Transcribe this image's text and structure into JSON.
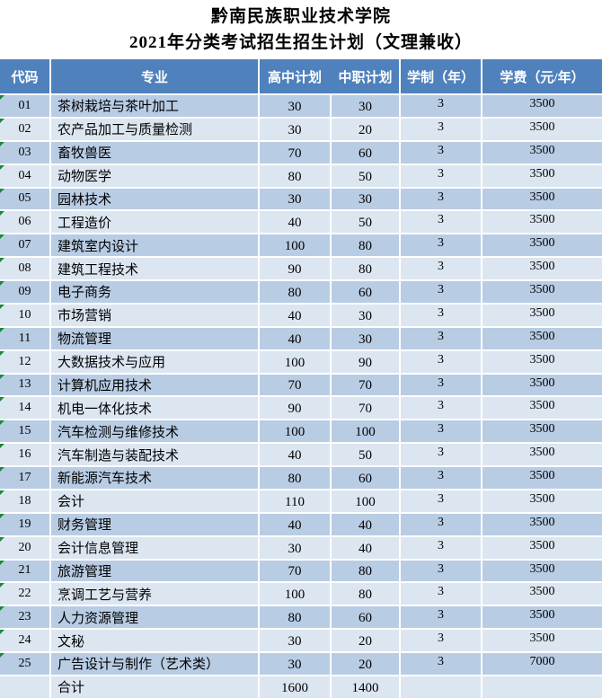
{
  "title": {
    "line1": "黔南民族职业技术学院",
    "line2": "2021年分类考试招生招生计划（文理兼收）"
  },
  "table": {
    "headers": [
      "代码",
      "专业",
      "高中计划",
      "中职计划",
      "学制（年）",
      "学费（元/年）"
    ],
    "rows": [
      {
        "code": "01",
        "major": "茶树栽培与茶叶加工",
        "hs": "30",
        "voc": "30",
        "years": "3",
        "fee": "3500"
      },
      {
        "code": "02",
        "major": "农产品加工与质量检测",
        "hs": "30",
        "voc": "20",
        "years": "3",
        "fee": "3500"
      },
      {
        "code": "03",
        "major": "畜牧兽医",
        "hs": "70",
        "voc": "60",
        "years": "3",
        "fee": "3500"
      },
      {
        "code": "04",
        "major": "动物医学",
        "hs": "80",
        "voc": "50",
        "years": "3",
        "fee": "3500"
      },
      {
        "code": "05",
        "major": "园林技术",
        "hs": "30",
        "voc": "30",
        "years": "3",
        "fee": "3500"
      },
      {
        "code": "06",
        "major": "工程造价",
        "hs": "40",
        "voc": "50",
        "years": "3",
        "fee": "3500"
      },
      {
        "code": "07",
        "major": "建筑室内设计",
        "hs": "100",
        "voc": "80",
        "years": "3",
        "fee": "3500"
      },
      {
        "code": "08",
        "major": "建筑工程技术",
        "hs": "90",
        "voc": "80",
        "years": "3",
        "fee": "3500"
      },
      {
        "code": "09",
        "major": "电子商务",
        "hs": "80",
        "voc": "60",
        "years": "3",
        "fee": "3500"
      },
      {
        "code": "10",
        "major": "市场营销",
        "hs": "40",
        "voc": "30",
        "years": "3",
        "fee": "3500"
      },
      {
        "code": "11",
        "major": "物流管理",
        "hs": "40",
        "voc": "30",
        "years": "3",
        "fee": "3500"
      },
      {
        "code": "12",
        "major": "大数据技术与应用",
        "hs": "100",
        "voc": "90",
        "years": "3",
        "fee": "3500"
      },
      {
        "code": "13",
        "major": "计算机应用技术",
        "hs": "70",
        "voc": "70",
        "years": "3",
        "fee": "3500"
      },
      {
        "code": "14",
        "major": "机电一体化技术",
        "hs": "90",
        "voc": "70",
        "years": "3",
        "fee": "3500"
      },
      {
        "code": "15",
        "major": "汽车检测与维修技术",
        "hs": "100",
        "voc": "100",
        "years": "3",
        "fee": "3500"
      },
      {
        "code": "16",
        "major": "汽车制造与装配技术",
        "hs": "40",
        "voc": "50",
        "years": "3",
        "fee": "3500"
      },
      {
        "code": "17",
        "major": "新能源汽车技术",
        "hs": "80",
        "voc": "60",
        "years": "3",
        "fee": "3500"
      },
      {
        "code": "18",
        "major": "会计",
        "hs": "110",
        "voc": "100",
        "years": "3",
        "fee": "3500"
      },
      {
        "code": "19",
        "major": "财务管理",
        "hs": "40",
        "voc": "40",
        "years": "3",
        "fee": "3500"
      },
      {
        "code": "20",
        "major": "会计信息管理",
        "hs": "30",
        "voc": "40",
        "years": "3",
        "fee": "3500"
      },
      {
        "code": "21",
        "major": "旅游管理",
        "hs": "70",
        "voc": "80",
        "years": "3",
        "fee": "3500"
      },
      {
        "code": "22",
        "major": "烹调工艺与营养",
        "hs": "100",
        "voc": "80",
        "years": "3",
        "fee": "3500"
      },
      {
        "code": "23",
        "major": "人力资源管理",
        "hs": "80",
        "voc": "60",
        "years": "3",
        "fee": "3500"
      },
      {
        "code": "24",
        "major": "文秘",
        "hs": "30",
        "voc": "20",
        "years": "3",
        "fee": "3500"
      },
      {
        "code": "25",
        "major": "广告设计与制作（艺术类）",
        "hs": "30",
        "voc": "20",
        "years": "3",
        "fee": "7000"
      }
    ],
    "total": {
      "label": "合计",
      "hs": "1600",
      "voc": "1400",
      "years": "",
      "fee": ""
    }
  },
  "colors": {
    "header_bg": "#4f81bd",
    "header_text": "#ffffff",
    "row_dark": "#b8cce4",
    "row_light": "#dce6f1",
    "grid_line": "#ffffff",
    "flag_green": "#188a38",
    "body_text": "#000000"
  }
}
